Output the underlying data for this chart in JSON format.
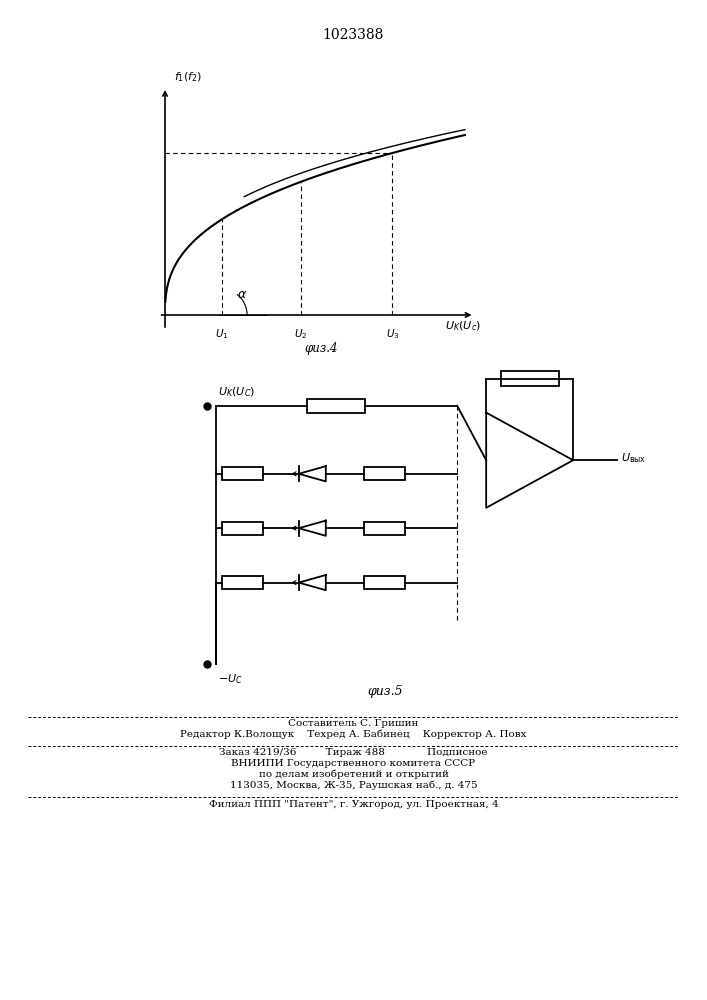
{
  "title": "1023388",
  "title_fontsize": 10,
  "background_color": "#ffffff",
  "fig4_caption": "φиз.4",
  "fig5_caption": "φиз.5",
  "footer_line1": "Составитель С. Гришин",
  "footer_line2": "Редактор К.Волощук    Техред А. Бабинец    Корректор А. Повх",
  "footer_line3": "Заказ 4219/36         Тираж 488             Подписное",
  "footer_line4": "ВНИИПИ Государственного комитета СССР",
  "footer_line5": "по делам изобретений и открытий",
  "footer_line6": "113035, Москва, Ж-35, Раушская наб., д. 475",
  "footer_line7": "Филиал ППП \"Патент\", г. Ужгород, ул. Проектная, 4"
}
